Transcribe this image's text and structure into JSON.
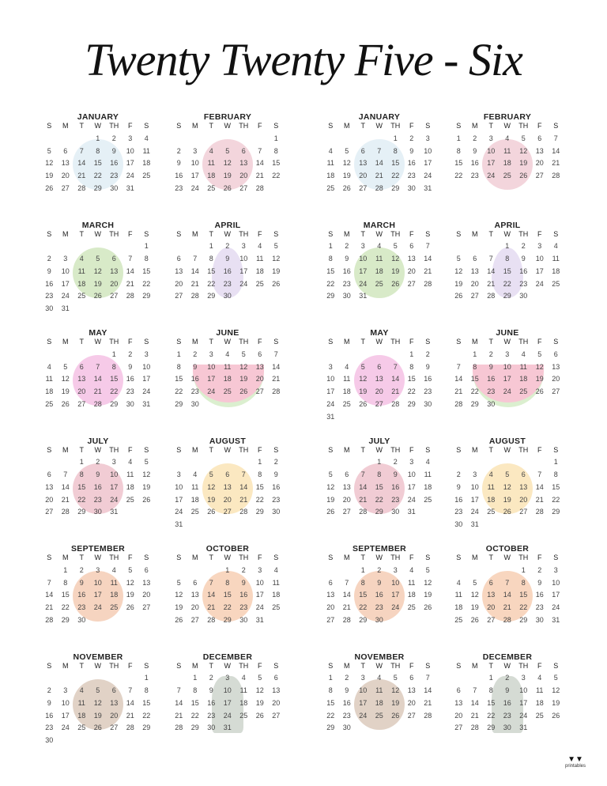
{
  "title": "Twenty Twenty Five - Six",
  "weekdays": [
    "S",
    "M",
    "T",
    "W",
    "TH",
    "F",
    "S"
  ],
  "calendars": [
    {
      "months": [
        {
          "name": "JANUARY",
          "first_day_column": 3,
          "day_count": 31,
          "decoration": "ice-skates",
          "color": "#cfe3ee"
        },
        {
          "name": "FEBRUARY",
          "first_day_column": 6,
          "day_count": 28,
          "decoration": "hearts",
          "color": "#eab3c0"
        },
        {
          "name": "MARCH",
          "first_day_column": 6,
          "day_count": 31,
          "decoration": "clover",
          "color": "#b8d99a"
        },
        {
          "name": "APRIL",
          "first_day_column": 2,
          "day_count": 30,
          "decoration": "easter-egg",
          "color": "#d5c6ea"
        },
        {
          "name": "MAY",
          "first_day_column": 4,
          "day_count": 31,
          "decoration": "flower",
          "color": "#ee9fd6"
        },
        {
          "name": "JUNE",
          "first_day_column": 0,
          "day_count": 30,
          "decoration": "watermelon",
          "color": "#f29bb2"
        },
        {
          "name": "JULY",
          "first_day_column": 2,
          "day_count": 31,
          "decoration": "fireworks",
          "color": "#e6a3b0"
        },
        {
          "name": "AUGUST",
          "first_day_column": 5,
          "day_count": 31,
          "decoration": "sun-leaf",
          "color": "#f7d58e"
        },
        {
          "name": "SEPTEMBER",
          "first_day_column": 1,
          "day_count": 30,
          "decoration": "maple-leaf",
          "color": "#eeb08c"
        },
        {
          "name": "OCTOBER",
          "first_day_column": 3,
          "day_count": 31,
          "decoration": "pumpkin",
          "color": "#f2b48a"
        },
        {
          "name": "NOVEMBER",
          "first_day_column": 6,
          "day_count": 30,
          "decoration": "leaf",
          "color": "#c9ad98"
        },
        {
          "name": "DECEMBER",
          "first_day_column": 1,
          "day_count": 31,
          "decoration": "tree",
          "color": "#b2bdb0"
        }
      ]
    },
    {
      "months": [
        {
          "name": "JANUARY",
          "first_day_column": 4,
          "day_count": 31,
          "decoration": "ice-skates",
          "color": "#cfe3ee"
        },
        {
          "name": "FEBRUARY",
          "first_day_column": 0,
          "day_count": 28,
          "decoration": "hearts",
          "color": "#eab3c0"
        },
        {
          "name": "MARCH",
          "first_day_column": 0,
          "day_count": 31,
          "decoration": "clover",
          "color": "#b8d99a"
        },
        {
          "name": "APRIL",
          "first_day_column": 3,
          "day_count": 30,
          "decoration": "easter-egg",
          "color": "#d5c6ea"
        },
        {
          "name": "MAY",
          "first_day_column": 5,
          "day_count": 31,
          "decoration": "flower",
          "color": "#ee9fd6"
        },
        {
          "name": "JUNE",
          "first_day_column": 1,
          "day_count": 30,
          "decoration": "watermelon",
          "color": "#f29bb2"
        },
        {
          "name": "JULY",
          "first_day_column": 3,
          "day_count": 31,
          "decoration": "fireworks",
          "color": "#e6a3b0"
        },
        {
          "name": "AUGUST",
          "first_day_column": 6,
          "day_count": 31,
          "decoration": "sun-leaf",
          "color": "#f7d58e"
        },
        {
          "name": "SEPTEMBER",
          "first_day_column": 2,
          "day_count": 30,
          "decoration": "maple-leaf",
          "color": "#eeb08c"
        },
        {
          "name": "OCTOBER",
          "first_day_column": 4,
          "day_count": 31,
          "decoration": "pumpkin",
          "color": "#f2b48a"
        },
        {
          "name": "NOVEMBER",
          "first_day_column": 0,
          "day_count": 30,
          "decoration": "leaf",
          "color": "#c9ad98"
        },
        {
          "name": "DECEMBER",
          "first_day_column": 2,
          "day_count": 31,
          "decoration": "tree",
          "color": "#b2bdb0"
        }
      ]
    }
  ],
  "logo": {
    "text": "printables"
  }
}
